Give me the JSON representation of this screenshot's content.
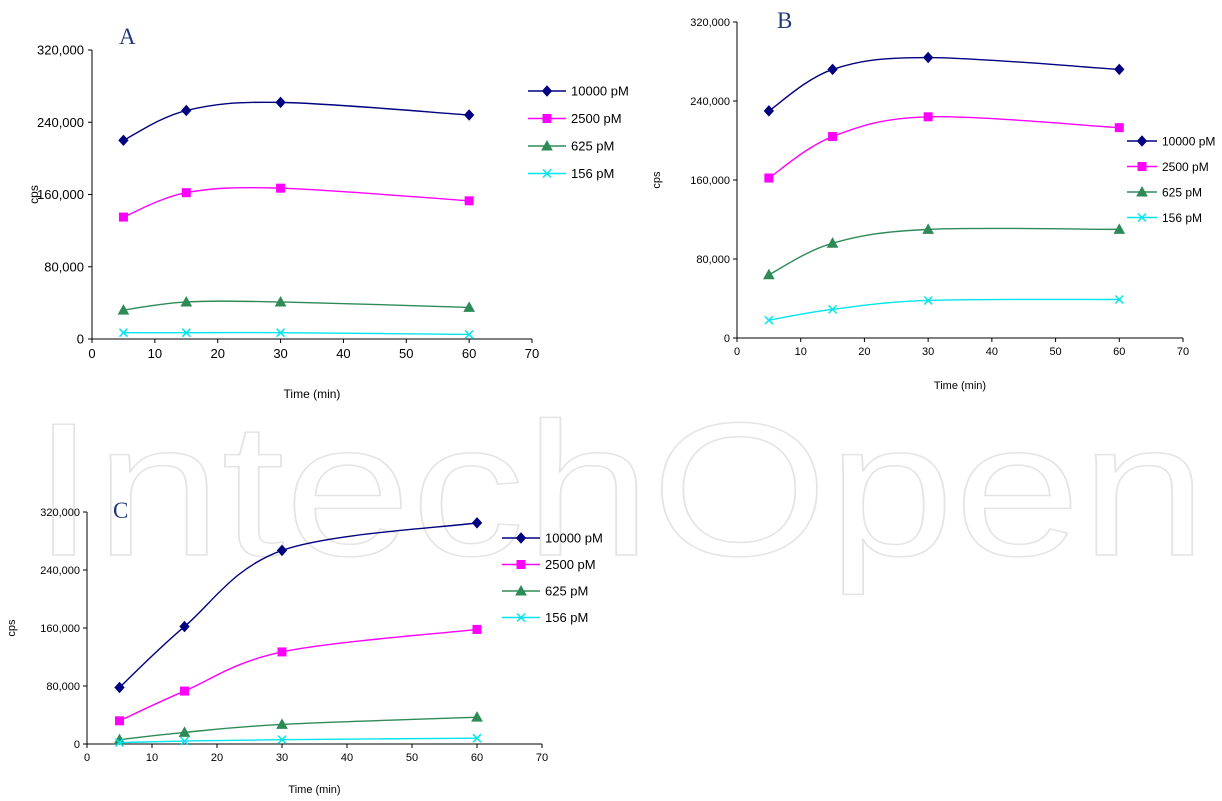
{
  "watermark": "IntechOpen",
  "chart_data": [
    {
      "type": "line",
      "panel_label": "A",
      "xlabel": "Time (min)",
      "ylabel": "cps",
      "xlim": [
        0,
        70
      ],
      "ylim": [
        0,
        320000
      ],
      "x_ticks": [
        0,
        10,
        20,
        30,
        40,
        50,
        60,
        70
      ],
      "y_ticks": [
        0,
        80000,
        160000,
        240000,
        320000
      ],
      "x_tick_labels": [
        "0",
        "10",
        "20",
        "30",
        "40",
        "50",
        "60",
        "70"
      ],
      "y_tick_labels": [
        "0",
        "80,000",
        "160,000",
        "240,000",
        "320,000"
      ],
      "x": [
        5,
        15,
        30,
        60
      ],
      "legend_position": "right",
      "grid": false,
      "series": [
        {
          "name": "10000 pM",
          "values": [
            220000,
            253000,
            262000,
            248000
          ],
          "color": "#000080",
          "marker": "diamond"
        },
        {
          "name": "2500 pM",
          "values": [
            135000,
            162000,
            167000,
            153000
          ],
          "color": "#ff00ff",
          "marker": "square"
        },
        {
          "name": "625 pM",
          "values": [
            32000,
            41000,
            41000,
            35000
          ],
          "color": "#2e8b57",
          "marker": "triangle"
        },
        {
          "name": "156 pM",
          "values": [
            7000,
            7000,
            7000,
            5000
          ],
          "color": "#00e5ee",
          "marker": "x"
        }
      ]
    },
    {
      "type": "line",
      "panel_label": "B",
      "xlabel": "Time (min)",
      "ylabel": "cps",
      "xlim": [
        0,
        70
      ],
      "ylim": [
        0,
        320000
      ],
      "x_ticks": [
        0,
        10,
        20,
        30,
        40,
        50,
        60,
        70
      ],
      "y_ticks": [
        0,
        80000,
        160000,
        240000,
        320000
      ],
      "x_tick_labels": [
        "0",
        "10",
        "20",
        "30",
        "40",
        "50",
        "60",
        "70"
      ],
      "y_tick_labels": [
        "0",
        "80,000",
        "160,000",
        "240,000",
        "320,000"
      ],
      "x": [
        5,
        15,
        30,
        60
      ],
      "legend_position": "right",
      "grid": false,
      "series": [
        {
          "name": "10000 pM",
          "values": [
            230000,
            272000,
            284000,
            272000
          ],
          "color": "#000080",
          "marker": "diamond"
        },
        {
          "name": "2500 pM",
          "values": [
            162000,
            204000,
            224000,
            213000
          ],
          "color": "#ff00ff",
          "marker": "square"
        },
        {
          "name": "625 pM",
          "values": [
            64000,
            96000,
            110000,
            110000
          ],
          "color": "#2e8b57",
          "marker": "triangle"
        },
        {
          "name": "156 pM",
          "values": [
            18000,
            29000,
            38000,
            39000
          ],
          "color": "#00e5ee",
          "marker": "x"
        }
      ]
    },
    {
      "type": "line",
      "panel_label": "C",
      "xlabel": "Time (min)",
      "ylabel": "cps",
      "xlim": [
        0,
        70
      ],
      "ylim": [
        0,
        320000
      ],
      "x_ticks": [
        0,
        10,
        20,
        30,
        40,
        50,
        60,
        70
      ],
      "y_ticks": [
        0,
        80000,
        160000,
        240000,
        320000
      ],
      "x_tick_labels": [
        "0",
        "10",
        "20",
        "30",
        "40",
        "50",
        "60",
        "70"
      ],
      "y_tick_labels": [
        "0",
        "80,000",
        "160,000",
        "240,000",
        "320,000"
      ],
      "x": [
        5,
        15,
        30,
        60
      ],
      "legend_position": "right",
      "grid": false,
      "series": [
        {
          "name": "10000 pM",
          "values": [
            78000,
            162000,
            267000,
            305000
          ],
          "color": "#000080",
          "marker": "diamond"
        },
        {
          "name": "2500 pM",
          "values": [
            32000,
            73000,
            127000,
            158000
          ],
          "color": "#ff00ff",
          "marker": "square"
        },
        {
          "name": "625 pM",
          "values": [
            6000,
            16000,
            27000,
            37000
          ],
          "color": "#2e8b57",
          "marker": "triangle"
        },
        {
          "name": "156 pM",
          "values": [
            2000,
            4000,
            6000,
            8000
          ],
          "color": "#00e5ee",
          "marker": "x"
        }
      ]
    }
  ]
}
